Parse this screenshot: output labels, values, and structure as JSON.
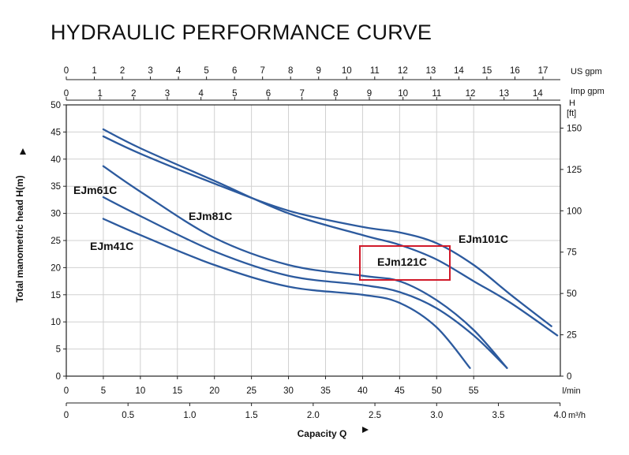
{
  "chart_data": {
    "type": "line",
    "title": "HYDRAULIC PERFORMANCE CURVE",
    "xlabel": "Capacity Q",
    "ylabel": "Total manometric head H(m)",
    "x_unit": "l/min",
    "x_m3h_unit": "m³/h",
    "us_gpm_unit": "US gpm",
    "imp_gpm_unit": "Imp gpm",
    "right_axis_unit_top": "H",
    "right_axis_unit": "[ft]",
    "xlim": [
      0,
      66.7
    ],
    "ylim": [
      0,
      50
    ],
    "grid": true,
    "x_ticks": [
      "0",
      "5",
      "10",
      "15",
      "20",
      "25",
      "30",
      "35",
      "40",
      "45",
      "50",
      "55"
    ],
    "y_ticks": [
      "0",
      "5",
      "10",
      "15",
      "20",
      "25",
      "30",
      "35",
      "40",
      "45",
      "50"
    ],
    "ft_ticks": [
      "0",
      "25",
      "50",
      "75",
      "100",
      "125",
      "150"
    ],
    "m3h_ticks": [
      "0",
      "0.5",
      "1.0",
      "1.5",
      "2.0",
      "2.5",
      "3.0",
      "3.5",
      "4.0"
    ],
    "us_gpm_ticks": [
      "0",
      "1",
      "2",
      "3",
      "4",
      "5",
      "6",
      "7",
      "8",
      "9",
      "10",
      "11",
      "12",
      "13",
      "14",
      "15",
      "16",
      "17"
    ],
    "imp_gpm_ticks": [
      "0",
      "1",
      "2",
      "3",
      "4",
      "5",
      "6",
      "7",
      "8",
      "9",
      "10",
      "11",
      "12",
      "13",
      "14"
    ],
    "series": [
      {
        "name": "EJm41C",
        "x": [
          5,
          10,
          20,
          30,
          40,
          45,
          50,
          54.5
        ],
        "y": [
          29,
          26,
          20.5,
          16.5,
          15,
          13.5,
          9,
          1.5
        ]
      },
      {
        "name": "EJm61C",
        "x": [
          5,
          10,
          20,
          30,
          40,
          45,
          50,
          55,
          59.5
        ],
        "y": [
          33,
          29.5,
          23,
          18.5,
          16.8,
          15.5,
          12.5,
          7.5,
          1.5
        ]
      },
      {
        "name": "EJm81C",
        "x": [
          5,
          10,
          20,
          30,
          40,
          45,
          50,
          55,
          59.5
        ],
        "y": [
          38.7,
          34,
          25.5,
          20.5,
          18.5,
          17.5,
          14,
          8.5,
          1.5
        ]
      },
      {
        "name": "EJm101C",
        "x": [
          5,
          10,
          20,
          30,
          40,
          45,
          50,
          55,
          60,
          65.5
        ],
        "y": [
          44.2,
          41,
          35.5,
          30.5,
          27.5,
          26.5,
          24.5,
          20.5,
          15,
          9.2
        ]
      },
      {
        "name": "EJm121C",
        "x": [
          5,
          10,
          20,
          30,
          40,
          45,
          50,
          55,
          60,
          66.3
        ],
        "y": [
          45.5,
          42,
          36,
          30,
          26,
          24.2,
          21.5,
          17.5,
          13.5,
          7.5
        ]
      }
    ],
    "highlight": "EJm121C"
  },
  "colors": {
    "curve": "#2c5a9e",
    "grid": "#d0d0d0",
    "axis": "#222222",
    "highlight_box": "#d11a2a"
  }
}
